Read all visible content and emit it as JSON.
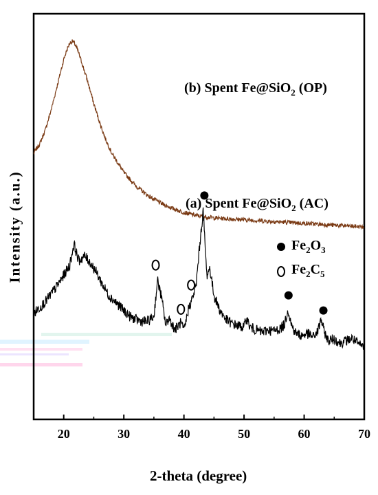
{
  "chart_data": {
    "type": "line",
    "xlabel": "2-theta (degree)",
    "ylabel": "Intensity (a.u.)",
    "xlim": [
      15,
      70
    ],
    "xticks": [
      20,
      30,
      40,
      50,
      60,
      70
    ],
    "ytick_labels": false,
    "series": [
      {
        "name": "(b) Spent Fe@SiO2 (OP)",
        "label_prefix": "(b) Spent Fe@SiO",
        "label_sub": "2",
        "label_suffix": " (OP)",
        "color": "#7a3a14",
        "x": [
          15,
          16,
          17,
          18,
          19,
          20,
          20.5,
          21,
          21.5,
          22,
          22.5,
          23,
          24,
          25,
          26,
          27,
          28,
          30,
          32,
          34,
          36,
          38,
          40,
          42,
          45,
          50,
          55,
          60,
          65,
          70
        ],
        "y": [
          2.9,
          3.05,
          3.3,
          3.65,
          4.05,
          4.45,
          4.6,
          4.72,
          4.75,
          4.68,
          4.55,
          4.4,
          4.08,
          3.72,
          3.4,
          3.12,
          2.9,
          2.58,
          2.36,
          2.2,
          2.08,
          1.99,
          1.92,
          1.87,
          1.83,
          1.8,
          1.77,
          1.74,
          1.71,
          1.68
        ]
      },
      {
        "name": "(a) Spent Fe@SiO2 (AC)",
        "label_prefix": "(a) Spent Fe@SiO",
        "label_sub": "2",
        "label_suffix": " (AC)",
        "color": "#000000",
        "x": [
          15,
          17,
          19,
          20,
          21,
          21.7,
          22.5,
          23.5,
          24.5,
          25.5,
          26.5,
          27.5,
          28.5,
          30,
          31,
          32,
          33,
          34,
          35,
          35.6,
          36.2,
          37,
          37.5,
          38.5,
          39.5,
          40,
          40.8,
          41.4,
          42,
          42.6,
          43.2,
          43.8,
          44.3,
          45,
          46,
          47,
          48,
          49,
          50,
          50.4,
          51,
          52,
          53,
          54,
          55,
          56,
          56.7,
          57.3,
          57.9,
          58.5,
          59.5,
          60.5,
          61.5,
          62.3,
          62.8,
          63.3,
          64,
          65,
          66,
          67,
          68,
          69,
          70
        ],
        "y": [
          0.25,
          0.45,
          0.72,
          0.88,
          1.05,
          1.4,
          1.12,
          1.2,
          1.08,
          0.92,
          0.72,
          0.55,
          0.45,
          0.3,
          0.2,
          0.15,
          0.12,
          0.12,
          0.2,
          0.8,
          0.55,
          0.05,
          0.18,
          -0.02,
          0.1,
          -0.05,
          0.35,
          0.5,
          0.7,
          1.35,
          1.95,
          0.88,
          1.0,
          0.55,
          0.3,
          0.15,
          0.08,
          0.05,
          0.02,
          0.18,
          0.02,
          -0.02,
          -0.06,
          -0.02,
          -0.04,
          0.0,
          0.06,
          0.32,
          0.06,
          -0.06,
          -0.12,
          -0.08,
          -0.14,
          -0.04,
          0.16,
          -0.04,
          -0.2,
          -0.17,
          -0.24,
          -0.2,
          -0.16,
          -0.26,
          -0.3
        ]
      }
    ],
    "legend": [
      {
        "marker": "filled-circle",
        "prefix": "Fe",
        "sub1": "2",
        "mid": "O",
        "sub2": "3",
        "color": "#000000"
      },
      {
        "marker": "open-circle",
        "prefix": "Fe",
        "sub1": "2",
        "mid": "C",
        "sub2": "5",
        "color": "#000000"
      }
    ],
    "annotations": [
      {
        "marker": "open-circle",
        "x": 35.3,
        "y": 1.05
      },
      {
        "marker": "open-circle",
        "x": 39.5,
        "y": 0.32
      },
      {
        "marker": "open-circle",
        "x": 41.2,
        "y": 0.72
      },
      {
        "marker": "filled-circle",
        "x": 43.4,
        "y": 2.2
      },
      {
        "marker": "filled-circle",
        "x": 57.4,
        "y": 0.55
      },
      {
        "marker": "filled-circle",
        "x": 63.2,
        "y": 0.3
      }
    ]
  }
}
